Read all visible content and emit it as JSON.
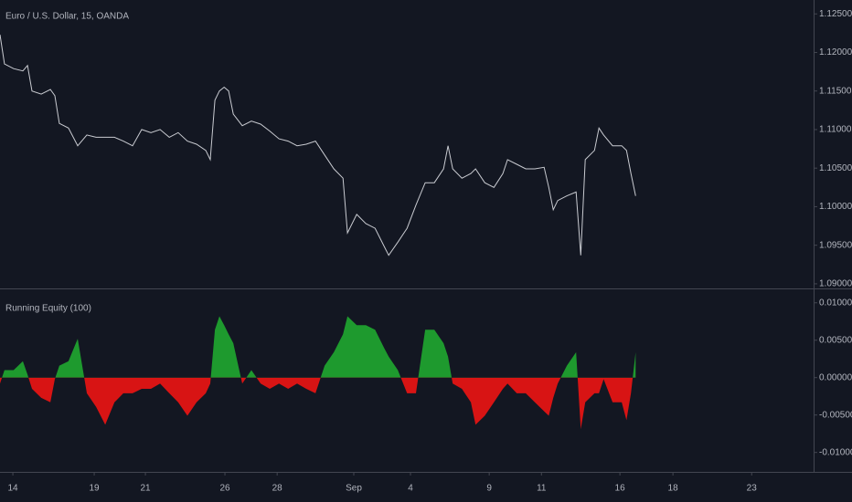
{
  "chart_data": [
    {
      "type": "line",
      "title": "Euro / U.S. Dollar, 15, OANDA",
      "color": "#c9cbd1",
      "x": [
        0,
        0.17,
        0.52,
        0.87,
        1.05,
        1.22,
        1.57,
        1.92,
        2.09,
        2.26,
        2.61,
        2.96,
        3.31,
        3.66,
        4.01,
        4.36,
        4.7,
        5.05,
        5.4,
        5.75,
        6.1,
        6.45,
        6.79,
        7.14,
        7.49,
        7.84,
        8.01,
        8.19,
        8.36,
        8.54,
        8.71,
        8.89,
        9.23,
        9.58,
        9.93,
        10.28,
        10.63,
        10.98,
        11.32,
        11.67,
        12.02,
        12.37,
        12.72,
        13.07,
        13.24,
        13.59,
        13.94,
        14.29,
        14.63,
        14.81,
        15.16,
        15.51,
        15.85,
        16.2,
        16.55,
        16.9,
        17.07,
        17.25,
        17.6,
        17.94,
        18.12,
        18.47,
        18.82,
        19.16,
        19.34,
        19.69,
        20.03,
        20.38,
        20.73,
        20.91,
        21.08,
        21.25,
        21.6,
        21.95,
        22.13,
        22.3,
        22.65,
        22.82,
        23,
        23.34,
        23.69,
        23.87,
        24.04,
        24.22
      ],
      "values": [
        1.1223,
        1.1185,
        1.1179,
        1.1176,
        1.1183,
        1.115,
        1.1146,
        1.1152,
        1.1144,
        1.1108,
        1.1102,
        1.1079,
        1.1093,
        1.109,
        1.109,
        1.109,
        1.1085,
        1.1079,
        1.11,
        1.1096,
        1.11,
        1.109,
        1.1096,
        1.1085,
        1.1081,
        1.1073,
        1.1061,
        1.1138,
        1.115,
        1.1155,
        1.115,
        1.112,
        1.1105,
        1.1111,
        1.1107,
        1.1098,
        1.1088,
        1.1085,
        1.1079,
        1.1081,
        1.1085,
        1.1067,
        1.1049,
        1.1037,
        1.0966,
        1.099,
        1.0978,
        1.0972,
        1.0949,
        1.0937,
        1.0954,
        1.0972,
        1.1002,
        1.1031,
        1.1031,
        1.1049,
        1.1079,
        1.1049,
        1.1037,
        1.1043,
        1.1049,
        1.1031,
        1.1025,
        1.1043,
        1.1061,
        1.1055,
        1.1049,
        1.1049,
        1.1051,
        1.1025,
        1.0996,
        1.1008,
        1.1014,
        1.1019,
        1.0937,
        1.1061,
        1.1073,
        1.1102,
        1.1093,
        1.1079,
        1.1079,
        1.1073,
        1.1043,
        1.1014
      ],
      "xlim": [
        0,
        31
      ],
      "ylim": [
        1.0894,
        1.1268
      ],
      "yticks": [
        {
          "value": 1.125,
          "label": "1.12500"
        },
        {
          "value": 1.12,
          "label": "1.12000"
        },
        {
          "value": 1.115,
          "label": "1.11500"
        },
        {
          "value": 1.11,
          "label": "1.11000"
        },
        {
          "value": 1.105,
          "label": "1.10500"
        },
        {
          "value": 1.1,
          "label": "1.10000"
        },
        {
          "value": 1.095,
          "label": "1.09500"
        },
        {
          "value": 1.09,
          "label": "1.09000"
        }
      ]
    },
    {
      "type": "area",
      "title": "Running Equity (100)",
      "color_positive": "#1e9a2e",
      "color_negative": "#d81414",
      "x": [
        0,
        0.17,
        0.52,
        0.87,
        1.05,
        1.22,
        1.57,
        1.92,
        2.09,
        2.26,
        2.61,
        2.96,
        3.31,
        3.66,
        4.01,
        4.36,
        4.7,
        5.05,
        5.4,
        5.75,
        6.1,
        6.45,
        6.79,
        7.14,
        7.49,
        7.84,
        8.01,
        8.19,
        8.36,
        8.54,
        8.71,
        8.89,
        9.23,
        9.58,
        9.93,
        10.28,
        10.63,
        10.98,
        11.32,
        11.67,
        12.02,
        12.37,
        12.72,
        13.07,
        13.24,
        13.59,
        13.94,
        14.29,
        14.63,
        14.81,
        15.16,
        15.51,
        15.85,
        16.2,
        16.55,
        16.9,
        17.07,
        17.25,
        17.6,
        17.94,
        18.12,
        18.47,
        18.82,
        19.16,
        19.34,
        19.69,
        20.03,
        20.38,
        20.73,
        20.91,
        21.08,
        21.25,
        21.6,
        21.95,
        22.13,
        22.3,
        22.65,
        22.82,
        23,
        23.34,
        23.69,
        23.87,
        24.04,
        24.22
      ],
      "values": [
        -0.0008,
        0.001,
        0.001,
        0.0022,
        0.0004,
        -0.0015,
        -0.0027,
        -0.0033,
        -0.0002,
        0.0016,
        0.0022,
        0.0052,
        -0.0021,
        -0.0039,
        -0.0063,
        -0.0033,
        -0.0021,
        -0.0021,
        -0.0015,
        -0.0015,
        -0.0008,
        -0.0021,
        -0.0033,
        -0.0051,
        -0.0033,
        -0.0021,
        -0.0008,
        0.0064,
        0.0082,
        0.007,
        0.0058,
        0.0046,
        -0.0008,
        0.001,
        -0.0008,
        -0.0015,
        -0.0008,
        -0.0015,
        -0.0008,
        -0.0015,
        -0.0021,
        0.0016,
        0.0034,
        0.0058,
        0.0082,
        0.007,
        0.007,
        0.0064,
        0.004,
        0.0028,
        0.001,
        -0.0021,
        -0.0021,
        0.0064,
        0.0064,
        0.0046,
        0.0028,
        -0.0008,
        -0.0015,
        -0.0033,
        -0.0063,
        -0.0051,
        -0.0033,
        -0.0015,
        -0.0008,
        -0.0021,
        -0.0021,
        -0.0033,
        -0.0045,
        -0.0051,
        -0.0027,
        -0.0008,
        0.0016,
        0.0034,
        -0.0069,
        -0.0033,
        -0.0021,
        -0.0021,
        -0.0002,
        -0.0033,
        -0.0033,
        -0.0057,
        -0.0021,
        0.0034
      ],
      "xlim": [
        0,
        31
      ],
      "ylim": [
        -0.0126,
        0.0118
      ],
      "yticks": [
        {
          "value": 0.01,
          "label": "0.01000"
        },
        {
          "value": 0.005,
          "label": "0.00500"
        },
        {
          "value": 0,
          "label": "0.00000"
        },
        {
          "value": -0.005,
          "label": "-0.00500"
        },
        {
          "value": -0.01,
          "label": "-0.01000"
        }
      ],
      "xticks": [
        {
          "value": 0.49,
          "label": "14"
        },
        {
          "value": 3.59,
          "label": "19"
        },
        {
          "value": 5.54,
          "label": "21"
        },
        {
          "value": 8.57,
          "label": "26"
        },
        {
          "value": 10.56,
          "label": "28"
        },
        {
          "value": 13.48,
          "label": "Sep"
        },
        {
          "value": 15.64,
          "label": "4"
        },
        {
          "value": 18.64,
          "label": "9"
        },
        {
          "value": 20.63,
          "label": "11"
        },
        {
          "value": 23.62,
          "label": "16"
        },
        {
          "value": 25.64,
          "label": "18"
        },
        {
          "value": 28.64,
          "label": "23"
        }
      ]
    }
  ]
}
